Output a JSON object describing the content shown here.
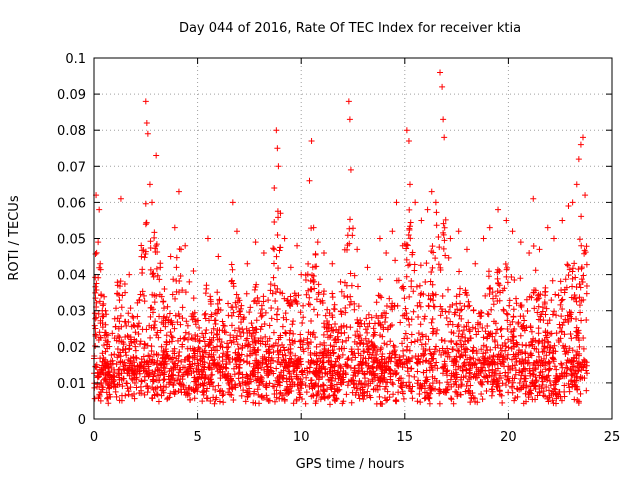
{
  "chart_data": {
    "type": "scatter",
    "title": "Day 044 of 2016, Rate Of TEC Index for receiver ktia",
    "xlabel": "GPS time / hours",
    "ylabel": "ROTI / TECUs",
    "xlim": [
      0,
      25
    ],
    "ylim": [
      0,
      0.1
    ],
    "grid": true,
    "marker": "+",
    "color": "#ff0000",
    "xticks": [
      0,
      5,
      10,
      15,
      20,
      25
    ],
    "xtick_labels": [
      "0",
      "5",
      "10",
      "15",
      "20",
      "25"
    ],
    "yticks": [
      0,
      0.01,
      0.02,
      0.03,
      0.04,
      0.05,
      0.06,
      0.07,
      0.08,
      0.09,
      0.1
    ],
    "ytick_labels": [
      "0",
      "0.01",
      "0.02",
      "0.03",
      "0.04",
      "0.05",
      "0.06",
      "0.07",
      "0.08",
      "0.09",
      "0.1"
    ],
    "series": [
      {
        "name": "ROTI",
        "x": [
          0.1,
          0.2,
          0.25,
          0.3,
          0.4,
          1.2,
          1.3,
          1.5,
          1.7,
          1.9,
          2.2,
          2.5,
          2.55,
          2.6,
          2.7,
          2.8,
          3.0,
          3.2,
          3.4,
          3.7,
          3.9,
          4.1,
          4.2,
          4.4,
          4.6,
          4.8,
          5.5,
          6.0,
          6.7,
          6.9,
          7.4,
          7.8,
          8.2,
          8.7,
          8.8,
          8.85,
          8.9,
          9.0,
          9.2,
          9.5,
          9.8,
          10.0,
          10.4,
          10.5,
          10.6,
          10.8,
          11.1,
          11.5,
          11.9,
          12.3,
          12.35,
          12.4,
          12.7,
          13.2,
          13.8,
          14.1,
          14.4,
          14.6,
          14.9,
          15.1,
          15.2,
          15.25,
          15.5,
          15.8,
          16.1,
          16.3,
          16.5,
          16.7,
          16.8,
          16.85,
          16.9,
          17.2,
          17.6,
          18.0,
          18.4,
          18.8,
          19.1,
          19.5,
          19.9,
          20.2,
          20.6,
          21.0,
          21.2,
          21.5,
          21.9,
          22.2,
          22.6,
          22.9,
          23.1,
          23.3,
          23.4,
          23.5,
          23.6,
          23.7
        ],
        "y": [
          0.062,
          0.049,
          0.058,
          0.043,
          0.03,
          0.025,
          0.061,
          0.035,
          0.04,
          0.028,
          0.033,
          0.088,
          0.082,
          0.079,
          0.065,
          0.06,
          0.073,
          0.042,
          0.036,
          0.045,
          0.053,
          0.063,
          0.047,
          0.048,
          0.038,
          0.041,
          0.05,
          0.045,
          0.06,
          0.052,
          0.043,
          0.049,
          0.046,
          0.064,
          0.08,
          0.075,
          0.07,
          0.057,
          0.05,
          0.042,
          0.048,
          0.04,
          0.066,
          0.077,
          0.053,
          0.049,
          0.046,
          0.043,
          0.038,
          0.088,
          0.083,
          0.069,
          0.047,
          0.042,
          0.05,
          0.046,
          0.052,
          0.06,
          0.048,
          0.08,
          0.077,
          0.065,
          0.06,
          0.055,
          0.058,
          0.063,
          0.06,
          0.096,
          0.092,
          0.083,
          0.078,
          0.05,
          0.052,
          0.047,
          0.043,
          0.05,
          0.053,
          0.058,
          0.055,
          0.052,
          0.049,
          0.046,
          0.061,
          0.047,
          0.053,
          0.05,
          0.055,
          0.059,
          0.06,
          0.065,
          0.072,
          0.076,
          0.078,
          0.062
        ]
      }
    ]
  }
}
